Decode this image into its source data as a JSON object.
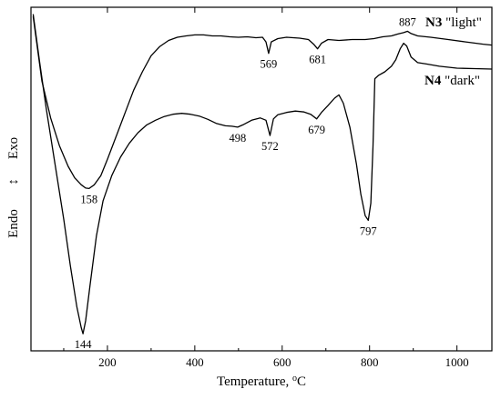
{
  "chart_data": {
    "type": "line",
    "xlabel": "Temperature, °C",
    "xlim": [
      25,
      1080
    ],
    "x_ticks": [
      200,
      400,
      600,
      800,
      1000
    ],
    "y_axis": {
      "top_label": "Exo",
      "bottom_label": "Endo",
      "arrow": "↕"
    },
    "series": [
      {
        "name": "N3 \"light\"",
        "name_bold": "N3",
        "name_rest": " \"light\"",
        "color": "#000000",
        "x": [
          30,
          50,
          70,
          90,
          110,
          125,
          140,
          150,
          158,
          170,
          185,
          200,
          220,
          240,
          260,
          280,
          300,
          320,
          340,
          360,
          380,
          400,
          420,
          440,
          460,
          480,
          500,
          520,
          540,
          555,
          563,
          569,
          575,
          590,
          610,
          640,
          660,
          672,
          681,
          690,
          705,
          730,
          760,
          790,
          810,
          830,
          850,
          865,
          878,
          887,
          895,
          910,
          940,
          980,
          1020,
          1060,
          1080
        ],
        "y": [
          4.0,
          2.6,
          1.8,
          1.2,
          0.75,
          0.5,
          0.35,
          0.28,
          0.27,
          0.35,
          0.55,
          0.9,
          1.4,
          1.9,
          2.4,
          2.8,
          3.15,
          3.35,
          3.48,
          3.55,
          3.58,
          3.6,
          3.6,
          3.58,
          3.58,
          3.56,
          3.55,
          3.56,
          3.54,
          3.55,
          3.45,
          3.2,
          3.45,
          3.52,
          3.55,
          3.53,
          3.5,
          3.4,
          3.3,
          3.42,
          3.5,
          3.48,
          3.5,
          3.5,
          3.52,
          3.56,
          3.58,
          3.62,
          3.65,
          3.68,
          3.63,
          3.58,
          3.55,
          3.5,
          3.45,
          3.4,
          3.38
        ],
        "peaks": [
          {
            "label": "158",
            "x": 158
          },
          {
            "label": "569",
            "x": 569
          },
          {
            "label": "681",
            "x": 681
          },
          {
            "label": "887",
            "x": 887
          }
        ]
      },
      {
        "name": "N4 \"dark\"",
        "name_bold": "N4",
        "name_rest": " \"dark\"",
        "color": "#000000",
        "x": [
          30,
          45,
          60,
          80,
          100,
          115,
          130,
          140,
          144,
          150,
          160,
          175,
          190,
          210,
          230,
          250,
          270,
          290,
          310,
          330,
          350,
          370,
          390,
          410,
          430,
          450,
          470,
          485,
          498,
          510,
          530,
          550,
          563,
          572,
          580,
          590,
          610,
          630,
          650,
          665,
          679,
          690,
          705,
          720,
          730,
          740,
          755,
          770,
          780,
          790,
          797,
          803,
          808,
          812,
          820,
          835,
          850,
          860,
          870,
          878,
          885,
          895,
          910,
          930,
          960,
          1000,
          1040,
          1080
        ],
        "y": [
          4.05,
          3.0,
          2.0,
          0.8,
          -0.4,
          -1.4,
          -2.3,
          -2.75,
          -2.88,
          -2.6,
          -1.85,
          -0.75,
          0.0,
          0.55,
          0.95,
          1.25,
          1.48,
          1.65,
          1.75,
          1.83,
          1.88,
          1.9,
          1.88,
          1.84,
          1.77,
          1.68,
          1.63,
          1.62,
          1.6,
          1.65,
          1.75,
          1.8,
          1.75,
          1.42,
          1.78,
          1.87,
          1.92,
          1.95,
          1.93,
          1.88,
          1.78,
          1.92,
          2.07,
          2.23,
          2.3,
          2.12,
          1.6,
          0.8,
          0.15,
          -0.32,
          -0.42,
          -0.05,
          1.2,
          2.65,
          2.72,
          2.8,
          2.92,
          3.06,
          3.3,
          3.42,
          3.36,
          3.12,
          3.0,
          2.97,
          2.92,
          2.88,
          2.87,
          2.86
        ],
        "peaks": [
          {
            "label": "144",
            "x": 144
          },
          {
            "label": "498",
            "x": 498
          },
          {
            "label": "572",
            "x": 572
          },
          {
            "label": "679",
            "x": 679
          },
          {
            "label": "797",
            "x": 797
          }
        ]
      }
    ]
  }
}
